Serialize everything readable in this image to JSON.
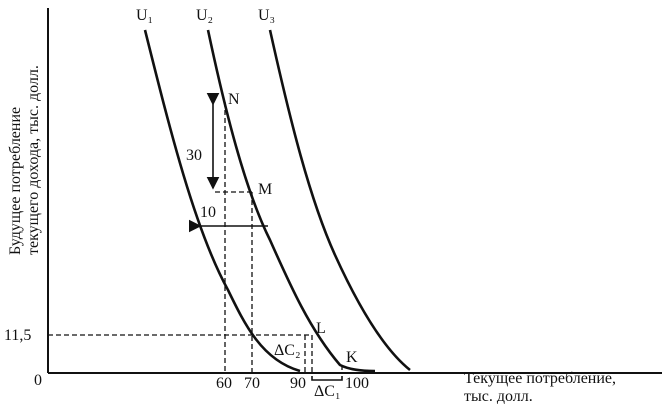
{
  "y_axis": {
    "label_lines": [
      "Будущее потребление",
      "текущего дохода, тыс. долл."
    ],
    "tick_labels": [
      "0",
      "11,5"
    ]
  },
  "x_axis": {
    "label_lines": [
      "Текущее потребление,",
      "тыс. долл."
    ],
    "tick_labels": [
      "60",
      "70",
      "90",
      "100"
    ]
  },
  "curves": [
    "U₁",
    "U₂",
    "U₃"
  ],
  "points": [
    "N",
    "M",
    "L",
    "K"
  ],
  "annotations": [
    "30",
    "10",
    "ΔC₂",
    "ΔC₁"
  ]
}
